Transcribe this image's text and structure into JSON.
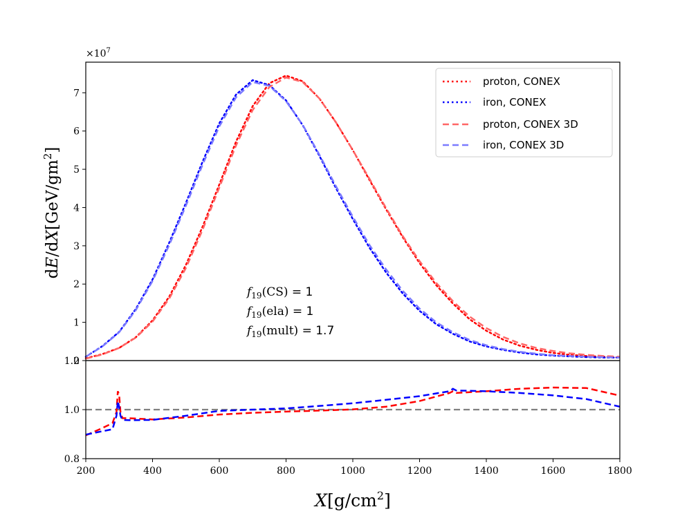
{
  "chart_data": [
    {
      "type": "line",
      "panel": "top",
      "xlim": [
        200,
        1800
      ],
      "ylim": [
        0,
        7.8
      ],
      "y_multiplier_label": "×10",
      "y_multiplier_exp": "7",
      "xticks": [
        200,
        400,
        600,
        800,
        1000,
        1200,
        1400,
        1600,
        1800
      ],
      "yticks": [
        0,
        1,
        2,
        3,
        4,
        5,
        6,
        7
      ],
      "ylabel": {
        "pre": "d",
        "E": "E",
        "mid": "/d",
        "X": "X",
        "units": "[GeV/gm",
        "sup": "2",
        "close": "]"
      },
      "annotation": [
        {
          "f": "f",
          "sub": "19",
          "arg": "(CS)",
          "rest": " = 1"
        },
        {
          "f": "f",
          "sub": "19",
          "arg": "(ela)",
          "rest": " = 1"
        },
        {
          "f": "f",
          "sub": "19",
          "arg": "(mult)",
          "rest": " = 1.7"
        }
      ],
      "legend_position": "upper right",
      "series": [
        {
          "name": "proton, CONEX",
          "color": "#ff0000",
          "style": "dotted",
          "x": [
            200,
            250,
            300,
            350,
            400,
            450,
            500,
            550,
            600,
            650,
            700,
            750,
            800,
            850,
            900,
            950,
            1000,
            1050,
            1100,
            1150,
            1200,
            1250,
            1300,
            1350,
            1400,
            1450,
            1500,
            1550,
            1600,
            1650,
            1700,
            1750,
            1800
          ],
          "y": [
            0.06,
            0.17,
            0.33,
            0.61,
            1.05,
            1.67,
            2.5,
            3.5,
            4.6,
            5.72,
            6.65,
            7.25,
            7.45,
            7.3,
            6.85,
            6.22,
            5.5,
            4.72,
            3.95,
            3.22,
            2.55,
            1.97,
            1.49,
            1.08,
            0.78,
            0.55,
            0.39,
            0.28,
            0.2,
            0.15,
            0.12,
            0.1,
            0.08
          ]
        },
        {
          "name": "iron, CONEX",
          "color": "#0000ff",
          "style": "dotted",
          "x": [
            200,
            250,
            300,
            350,
            400,
            450,
            500,
            550,
            600,
            650,
            700,
            750,
            800,
            850,
            900,
            950,
            1000,
            1050,
            1100,
            1150,
            1200,
            1250,
            1300,
            1350,
            1400,
            1450,
            1500,
            1550,
            1600,
            1650,
            1700,
            1750,
            1800
          ],
          "y": [
            0.1,
            0.38,
            0.75,
            1.35,
            2.12,
            3.08,
            4.12,
            5.2,
            6.2,
            6.95,
            7.33,
            7.2,
            6.8,
            6.15,
            5.35,
            4.5,
            3.7,
            2.95,
            2.3,
            1.75,
            1.3,
            0.95,
            0.7,
            0.5,
            0.37,
            0.28,
            0.21,
            0.16,
            0.13,
            0.11,
            0.09,
            0.08,
            0.08
          ]
        },
        {
          "name": "proton, CONEX 3D",
          "color": "#ff6666",
          "style": "dashed",
          "x": [
            200,
            250,
            300,
            350,
            400,
            450,
            500,
            550,
            600,
            650,
            700,
            750,
            800,
            850,
            900,
            950,
            1000,
            1050,
            1100,
            1150,
            1200,
            1250,
            1300,
            1350,
            1400,
            1450,
            1500,
            1550,
            1600,
            1650,
            1700,
            1750,
            1800
          ],
          "y": [
            0.05,
            0.16,
            0.33,
            0.6,
            1.02,
            1.62,
            2.42,
            3.42,
            4.52,
            5.62,
            6.55,
            7.15,
            7.4,
            7.28,
            6.85,
            6.22,
            5.5,
            4.75,
            3.98,
            3.25,
            2.6,
            2.03,
            1.55,
            1.15,
            0.85,
            0.62,
            0.45,
            0.33,
            0.25,
            0.19,
            0.15,
            0.12,
            0.1
          ]
        },
        {
          "name": "iron, CONEX 3D",
          "color": "#7a7aff",
          "style": "dashed",
          "x": [
            200,
            250,
            300,
            350,
            400,
            450,
            500,
            550,
            600,
            650,
            700,
            750,
            800,
            850,
            900,
            950,
            1000,
            1050,
            1100,
            1150,
            1200,
            1250,
            1300,
            1350,
            1400,
            1450,
            1500,
            1550,
            1600,
            1650,
            1700,
            1750,
            1800
          ],
          "y": [
            0.1,
            0.37,
            0.74,
            1.32,
            2.08,
            3.02,
            4.05,
            5.12,
            6.12,
            6.88,
            7.28,
            7.18,
            6.78,
            6.16,
            5.38,
            4.55,
            3.76,
            3.02,
            2.38,
            1.82,
            1.36,
            1.0,
            0.74,
            0.54,
            0.4,
            0.3,
            0.23,
            0.18,
            0.14,
            0.12,
            0.1,
            0.09,
            0.08
          ]
        }
      ]
    },
    {
      "type": "line",
      "panel": "bottom",
      "xlim": [
        200,
        1800
      ],
      "ylim": [
        0.8,
        1.2
      ],
      "xticks": [
        200,
        400,
        600,
        800,
        1000,
        1200,
        1400,
        1600,
        1800
      ],
      "yticks": [
        0.8,
        1.0,
        1.2
      ],
      "ytick_labels": [
        "0.8",
        "1.0",
        "1.2"
      ],
      "xlabel": {
        "X": "X",
        "units": "[g/cm",
        "sup": "2",
        "close": "]"
      },
      "reference_line": {
        "y": 1.0,
        "color": "#808080",
        "style": "dashed"
      },
      "series": [
        {
          "color": "#ff0000",
          "style": "dashed",
          "x": [
            200,
            250,
            280,
            292,
            296,
            300,
            304,
            310,
            330,
            400,
            500,
            600,
            700,
            800,
            900,
            1000,
            1100,
            1200,
            1290,
            1300,
            1310,
            1400,
            1500,
            1600,
            1700,
            1800
          ],
          "y": [
            0.895,
            0.925,
            0.945,
            0.99,
            1.075,
            1.06,
            0.99,
            0.965,
            0.965,
            0.96,
            0.968,
            0.98,
            0.987,
            0.992,
            0.996,
            1.001,
            1.012,
            1.035,
            1.068,
            1.075,
            1.068,
            1.075,
            1.085,
            1.09,
            1.088,
            1.057
          ]
        },
        {
          "color": "#0000ff",
          "style": "dashed",
          "x": [
            200,
            250,
            280,
            292,
            296,
            300,
            304,
            310,
            330,
            400,
            500,
            600,
            700,
            800,
            900,
            1000,
            1100,
            1200,
            1290,
            1300,
            1310,
            1400,
            1500,
            1600,
            1700,
            1800
          ],
          "y": [
            0.898,
            0.912,
            0.92,
            0.975,
            1.035,
            1.01,
            0.975,
            0.958,
            0.957,
            0.958,
            0.975,
            0.995,
            1.0,
            1.005,
            1.015,
            1.026,
            1.04,
            1.055,
            1.075,
            1.085,
            1.078,
            1.075,
            1.068,
            1.058,
            1.043,
            1.012
          ]
        }
      ]
    }
  ]
}
